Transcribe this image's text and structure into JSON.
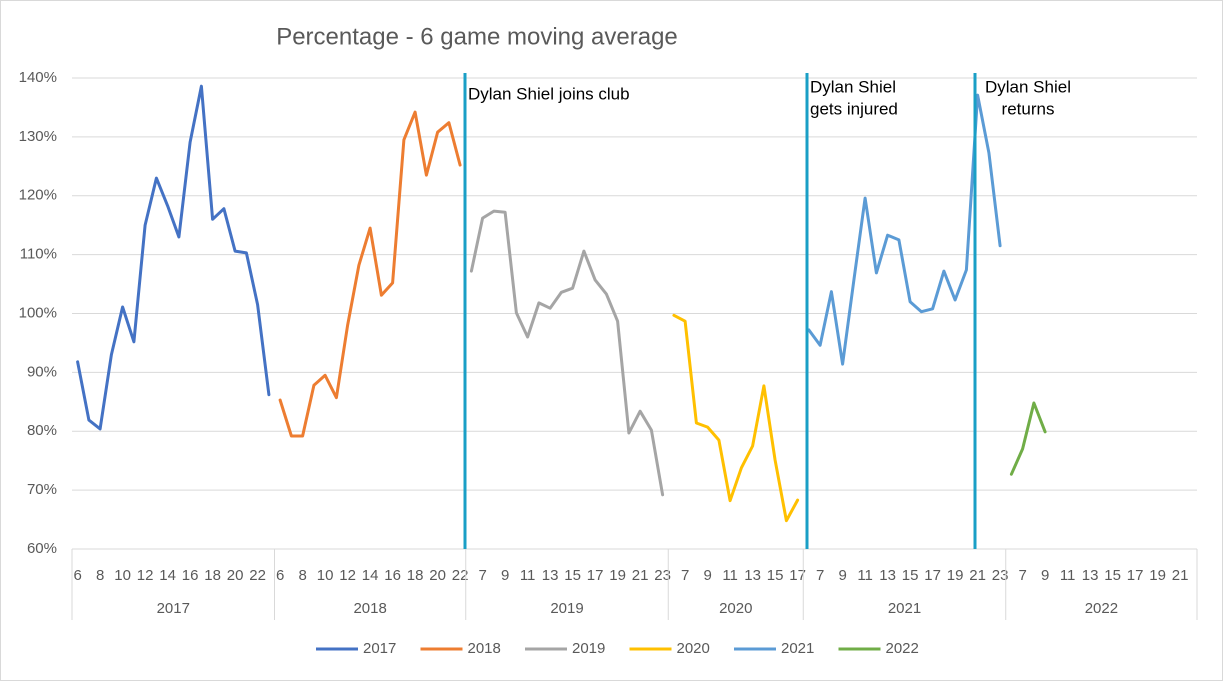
{
  "chart_data": {
    "type": "line",
    "title": "Percentage - 6 game moving average",
    "ylim": [
      60,
      140
    ],
    "yticks": [
      {
        "value": 60,
        "label": "60%"
      },
      {
        "value": 70,
        "label": "70%"
      },
      {
        "value": 80,
        "label": "80%"
      },
      {
        "value": 90,
        "label": "90%"
      },
      {
        "value": 100,
        "label": "100%"
      },
      {
        "value": 110,
        "label": "110%"
      },
      {
        "value": 120,
        "label": "120%"
      },
      {
        "value": 130,
        "label": "130%"
      },
      {
        "value": 140,
        "label": "140%"
      }
    ],
    "grid": true,
    "legend": "bottom",
    "category_groups": [
      {
        "name": "2017",
        "categories": [
          "6",
          null,
          "8",
          null,
          "10",
          null,
          "12",
          null,
          "14",
          null,
          "16",
          null,
          "18",
          null,
          "20",
          null,
          "22",
          null
        ]
      },
      {
        "name": "2018",
        "categories": [
          "6",
          null,
          "8",
          null,
          "10",
          null,
          "12",
          null,
          "14",
          null,
          "16",
          null,
          "18",
          null,
          "20",
          null,
          "22"
        ]
      },
      {
        "name": "2019",
        "categories": [
          null,
          "7",
          null,
          "9",
          null,
          "11",
          null,
          "13",
          null,
          "15",
          null,
          "17",
          null,
          "19",
          null,
          "21",
          null,
          "23"
        ]
      },
      {
        "name": "2020",
        "categories": [
          null,
          "7",
          null,
          "9",
          null,
          "11",
          null,
          "13",
          null,
          "15",
          null,
          "17"
        ]
      },
      {
        "name": "2021",
        "categories": [
          null,
          "7",
          null,
          "9",
          null,
          "11",
          null,
          "13",
          null,
          "15",
          null,
          "17",
          null,
          "19",
          null,
          "21",
          null,
          "23"
        ]
      },
      {
        "name": "2022",
        "categories": [
          null,
          "7",
          null,
          "9",
          null,
          "11",
          null,
          "13",
          null,
          "15",
          null,
          "17",
          null,
          "19",
          null,
          "21",
          null
        ]
      }
    ],
    "series": [
      {
        "name": "2017",
        "color": "#4472c4",
        "values": [
          91.8,
          81.9,
          80.4,
          93,
          101.1,
          95.2,
          115,
          123,
          118.3,
          113,
          129.1,
          138.6,
          116,
          117.8,
          110.6,
          110.3,
          101.5,
          86.2
        ]
      },
      {
        "name": "2018",
        "color": "#ed7d31",
        "values": [
          85.3,
          79.2,
          79.2,
          87.8,
          89.5,
          85.7,
          98,
          108.2,
          114.5,
          103.1,
          105.2,
          129.5,
          134.2,
          123.5,
          130.8,
          132.4,
          125.2
        ]
      },
      {
        "name": "2019",
        "color": "#a5a5a5",
        "values": [
          107.2,
          116.2,
          117.4,
          117.2,
          100.1,
          96,
          101.8,
          100.9,
          103.6,
          104.3,
          110.6,
          105.7,
          103.3,
          98.7,
          79.7,
          83.4,
          80.2,
          69.2
        ]
      },
      {
        "name": "2020",
        "color": "#ffc000",
        "values": [
          99.7,
          98.7,
          81.4,
          80.7,
          78.5,
          68.2,
          73.8,
          77.5,
          87.7,
          75.1,
          64.8,
          68.3
        ]
      },
      {
        "name": "2021",
        "color": "#5b9bd5",
        "values": [
          97.2,
          94.6,
          103.7,
          91.4,
          105.7,
          119.6,
          106.9,
          113.3,
          112.5,
          102,
          100.3,
          100.8,
          107.2,
          102.3,
          107.4,
          137.1,
          127.3,
          111.5
        ]
      },
      {
        "name": "2022",
        "color": "#70ad47",
        "values": [
          72.7,
          77,
          84.8,
          79.9,
          null,
          null,
          null,
          null,
          null,
          null,
          null,
          null,
          null,
          null,
          null,
          null,
          null
        ]
      }
    ],
    "annotations": [
      {
        "lines": [
          "Dylan Shiel joins club"
        ]
      },
      {
        "lines": [
          "Dylan Shiel",
          "gets injured"
        ]
      },
      {
        "lines": [
          "Dylan Shiel",
          "returns"
        ]
      }
    ]
  }
}
